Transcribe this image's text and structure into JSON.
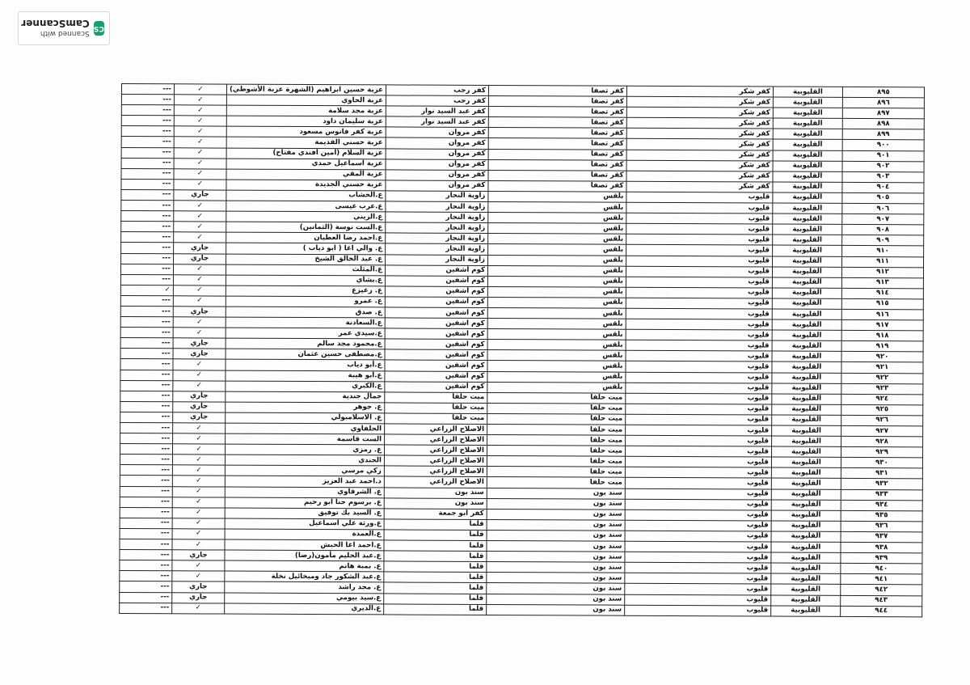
{
  "watermark": {
    "line1": "Scanned with",
    "line2": "CamScanner",
    "mark": "CS",
    "color": "#15a06a"
  },
  "table": {
    "columns": 8,
    "rows": [
      [
        "٨٩٥",
        "القليوبية",
        "كفر شكر",
        "كفر تصفا",
        "كفر رجب",
        "عزبة حسين ابراهيم (الشهرة عزبة الأشوطي)",
        "✓",
        "---"
      ],
      [
        "٨٩٦",
        "القليوبية",
        "كفر شكر",
        "كفر تصفا",
        "كفر رجب",
        "عزبة الحاوي",
        "✓",
        "---"
      ],
      [
        "٨٩٧",
        "القليوبية",
        "كفر شكر",
        "كفر تصفا",
        "كفر عبد السيد نوار",
        "عزبة مجد سلامة",
        "✓",
        "---"
      ],
      [
        "٨٩٨",
        "القليوبية",
        "كفر شكر",
        "كفر تصفا",
        "كفر عبد السيد نوار",
        "عزبة سليمان داود",
        "✓",
        "---"
      ],
      [
        "٨٩٩",
        "القليوبية",
        "كفر شكر",
        "كفر تصفا",
        "كفر مروان",
        "عزبة كفر فانوس مسعود",
        "✓",
        "---"
      ],
      [
        "٩٠٠",
        "القليوبية",
        "كفر شكر",
        "كفر تصفا",
        "كفر مروان",
        "عزبة حسني القديمة",
        "✓",
        "---"
      ],
      [
        "٩٠١",
        "القليوبية",
        "كفر شكر",
        "كفر تصفا",
        "كفر مروان",
        "عزبة السلام (أمين أفندي مفتاح)",
        "✓",
        "---"
      ],
      [
        "٩٠٢",
        "القليوبية",
        "كفر شكر",
        "كفر تصفا",
        "كفر مروان",
        "عزبة اسماعيل حمدي",
        "✓",
        "---"
      ],
      [
        "٩٠٣",
        "القليوبية",
        "كفر شكر",
        "كفر تصفا",
        "كفر مروان",
        "عزبة المقي",
        "✓",
        "---"
      ],
      [
        "٩٠٤",
        "القليوبية",
        "كفر شكر",
        "كفر تصفا",
        "كفر مروان",
        "عزبة حسني الجديدة",
        "✓",
        "---"
      ],
      [
        "٩٠٥",
        "القليوبية",
        "قليوب",
        "بلقس",
        "زاوية النجار",
        "ع.الخشاب",
        "جاري",
        "---"
      ],
      [
        "٩٠٦",
        "القليوبية",
        "قليوب",
        "بلقس",
        "زاوية النجار",
        "ع.عرب عيسى",
        "✓",
        "---"
      ],
      [
        "٩٠٧",
        "القليوبية",
        "قليوب",
        "بلقس",
        "زاوية النجار",
        "ع.الزيني",
        "✓",
        "---"
      ],
      [
        "٩٠٨",
        "القليوبية",
        "قليوب",
        "بلقس",
        "زاوية النجار",
        "ع.الست نوسة (الثمانين)",
        "✓",
        "---"
      ],
      [
        "٩٠٩",
        "القليوبية",
        "قليوب",
        "بلقس",
        "زاوية النجار",
        "ع.احمد رضا العطيان",
        "✓",
        "---"
      ],
      [
        "٩١٠",
        "القليوبية",
        "قليوب",
        "بلقس",
        "زاوية النجار",
        "ع. والي اغا ( ابو دياب )",
        "جاري",
        "---"
      ],
      [
        "٩١١",
        "القليوبية",
        "قليوب",
        "بلقس",
        "زاوية النجار",
        "ع. عبد الخالق الشيخ",
        "جاري",
        "---"
      ],
      [
        "٩١٢",
        "القليوبية",
        "قليوب",
        "بلقس",
        "كوم اشفين",
        "ع.المثلث",
        "✓",
        "---"
      ],
      [
        "٩١٣",
        "القليوبية",
        "قليوب",
        "بلقس",
        "كوم اشفين",
        "ع.بشاي",
        "✓",
        "---"
      ],
      [
        "٩١٤",
        "القليوبية",
        "قليوب",
        "بلقس",
        "كوم اشفين",
        "ع. زعيزع",
        "✓",
        "✓"
      ],
      [
        "٩١٥",
        "القليوبية",
        "قليوب",
        "بلقس",
        "كوم اشفين",
        "ع. عمرو",
        "✓",
        "---"
      ],
      [
        "٩١٦",
        "القليوبية",
        "قليوب",
        "بلقس",
        "كوم اشفين",
        "ع. صدق",
        "جاري",
        "---"
      ],
      [
        "٩١٧",
        "القليوبية",
        "قليوب",
        "بلقس",
        "كوم اشفين",
        "ع.السعادنة",
        "✓",
        "---"
      ],
      [
        "٩١٨",
        "القليوبية",
        "قليوب",
        "بلقس",
        "كوم اشفين",
        "ع.سيدي عمر",
        "✓",
        "---"
      ],
      [
        "٩١٩",
        "القليوبية",
        "قليوب",
        "بلقس",
        "كوم اشفين",
        "ع.محمود مجد سالم",
        "جاري",
        "---"
      ],
      [
        "٩٢٠",
        "القليوبية",
        "قليوب",
        "بلقس",
        "كوم اشفين",
        "ع.مصطفى حسين عثمان",
        "جاري",
        "---"
      ],
      [
        "٩٢١",
        "القليوبية",
        "قليوب",
        "بلقس",
        "كوم اشفين",
        "ع.أبو دياب",
        "✓",
        "---"
      ],
      [
        "٩٢٢",
        "القليوبية",
        "قليوب",
        "بلقس",
        "كوم اشفين",
        "ع.أبو هيبة",
        "✓",
        "---"
      ],
      [
        "٩٢٣",
        "القليوبية",
        "قليوب",
        "بلقس",
        "كوم اشفين",
        "ع.الكبري",
        "✓",
        "---"
      ],
      [
        "٩٢٤",
        "القليوبية",
        "قليوب",
        "ميت حلفا",
        "ميت حلفا",
        "جمال جندية",
        "جاري",
        "---"
      ],
      [
        "٩٢٥",
        "القليوبية",
        "قليوب",
        "ميت حلفا",
        "ميت حلفا",
        "ع. جوهر",
        "جاري",
        "---"
      ],
      [
        "٩٢٦",
        "القليوبية",
        "قليوب",
        "ميت حلفا",
        "ميت حلفا",
        "ع. الاسلامبولي",
        "جاري",
        "---"
      ],
      [
        "٩٢٧",
        "القليوبية",
        "قليوب",
        "ميت حلفا",
        "الاصلاح الزراعي",
        "الحلفاوي",
        "✓",
        "---"
      ],
      [
        "٩٢٨",
        "القليوبية",
        "قليوب",
        "ميت حلفا",
        "الاصلاح الزراعي",
        "الست قاسمة",
        "✓",
        "---"
      ],
      [
        "٩٢٩",
        "القليوبية",
        "قليوب",
        "ميت حلفا",
        "الاصلاح الزراعي",
        "ع. رمزي",
        "✓",
        "---"
      ],
      [
        "٩٣٠",
        "القليوبية",
        "قليوب",
        "ميت حلفا",
        "الاصلاح الزراعي",
        "الجندي",
        "✓",
        "---"
      ],
      [
        "٩٣١",
        "القليوبية",
        "قليوب",
        "ميت حلفا",
        "الاصلاح الزراعي",
        "زكي مرسي",
        "✓",
        "---"
      ],
      [
        "٩٣٢",
        "القليوبية",
        "قليوب",
        "ميت حلفا",
        "الاصلاح الزراعي",
        "د.احمد عبد العزيز",
        "✓",
        "---"
      ],
      [
        "٩٣٣",
        "القليوبية",
        "قليوب",
        "سند بون",
        "سند بون",
        "ع. الشرقاوي",
        "✓",
        "---"
      ],
      [
        "٩٣٤",
        "القليوبية",
        "قليوب",
        "سند بون",
        "سند بون",
        "ع. برسوم حنا ابو رحيم",
        "✓",
        "---"
      ],
      [
        "٩٣٥",
        "القليوبية",
        "قليوب",
        "سند بون",
        "كفر ابو جمعة",
        "ع. السيد بك توفيق",
        "✓",
        "---"
      ],
      [
        "٩٣٦",
        "القليوبية",
        "قليوب",
        "سند بون",
        "قلما",
        "ع.ورثة علي اسماعيل",
        "✓",
        "---"
      ],
      [
        "٩٣٧",
        "القليوبية",
        "قليوب",
        "سند بون",
        "قلما",
        "ع.العمدة",
        "✓",
        "---"
      ],
      [
        "٩٣٨",
        "القليوبية",
        "قليوب",
        "سند بون",
        "قلما",
        "ع.احمد اغا الحبش",
        "✓",
        "---"
      ],
      [
        "٩٣٩",
        "القليوبية",
        "قليوب",
        "سند بون",
        "قلما",
        "ع.عبد الحليم مأمون(رضا)",
        "جاري",
        "---"
      ],
      [
        "٩٤٠",
        "القليوبية",
        "قليوب",
        "سند بون",
        "قلما",
        "ع. بمبة هانم",
        "✓",
        "---"
      ],
      [
        "٩٤١",
        "القليوبية",
        "قليوب",
        "سند بون",
        "قلما",
        "ع.عبد الشكور جاد وميخائيل نخلة",
        "✓",
        "---"
      ],
      [
        "٩٤٢",
        "القليوبية",
        "قليوب",
        "سند بون",
        "قلما",
        "ع. مجد راشد",
        "جاري",
        "---"
      ],
      [
        "٩٤٣",
        "القليوبية",
        "قليوب",
        "سند بون",
        "قلما",
        "ع.سيد بيومي",
        "جاري",
        "---"
      ],
      [
        "٩٤٤",
        "القليوبية",
        "قليوب",
        "سند بون",
        "قلما",
        "ع.الديري",
        "✓",
        "---"
      ]
    ]
  }
}
